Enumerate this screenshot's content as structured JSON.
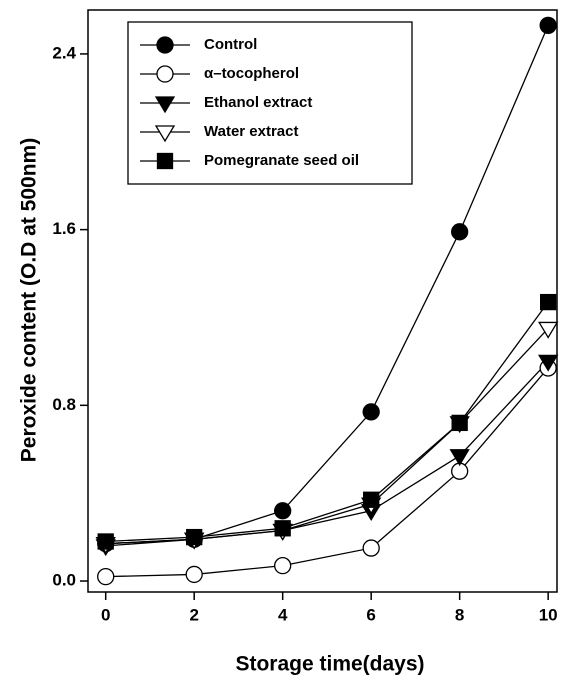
{
  "chart_data": {
    "type": "line",
    "x_label": "Storage time(days)",
    "y_label": "Peroxide content (O.D at 500nm)",
    "x": [
      0,
      2,
      4,
      6,
      8,
      10
    ],
    "series": [
      {
        "name": "Control",
        "color": "#000000",
        "marker": "circle",
        "filled": true,
        "values": [
          0.17,
          0.19,
          0.32,
          0.77,
          1.59,
          2.53
        ]
      },
      {
        "name": "α–tocopherol",
        "color": "#000000",
        "marker": "circle",
        "filled": false,
        "values": [
          0.02,
          0.03,
          0.07,
          0.15,
          0.5,
          0.97
        ]
      },
      {
        "name": "Ethanol extract",
        "color": "#000000",
        "marker": "triangle-down",
        "filled": true,
        "values": [
          0.16,
          0.19,
          0.23,
          0.32,
          0.57,
          1.0
        ]
      },
      {
        "name": "Water extract",
        "color": "#000000",
        "marker": "triangle-down",
        "filled": false,
        "values": [
          0.17,
          0.19,
          0.23,
          0.35,
          0.72,
          1.15
        ]
      },
      {
        "name": "Pomegranate seed oil",
        "color": "#000000",
        "marker": "square",
        "filled": true,
        "values": [
          0.18,
          0.2,
          0.24,
          0.37,
          0.72,
          1.27
        ]
      }
    ],
    "xlim": [
      -0.4,
      10.2
    ],
    "ylim": [
      -0.05,
      2.6
    ],
    "xticks": [
      0,
      2,
      4,
      6,
      8,
      10
    ],
    "yticks": [
      {
        "value": 0,
        "label": "0.0"
      },
      {
        "value": 0.8,
        "label": "0.8"
      },
      {
        "value": 1.6,
        "label": "1.6"
      },
      {
        "value": 2.4,
        "label": "2.4"
      }
    ],
    "legend": "upper-left",
    "grid": false
  }
}
